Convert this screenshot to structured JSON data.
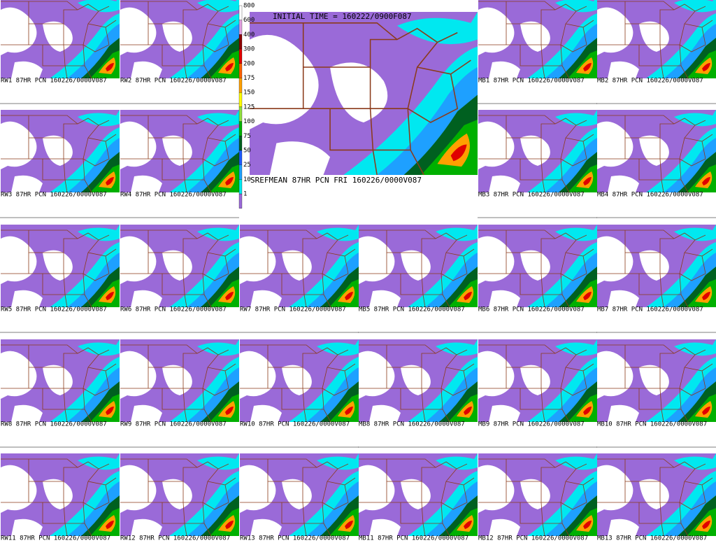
{
  "center": {
    "initial_time": "INITIAL TIME = 160222/0900F087",
    "label": "SREFMEAN 87HR PCN FRI 160226/0000V087"
  },
  "colorbar": {
    "labels": [
      800,
      600,
      400,
      300,
      200,
      175,
      150,
      125,
      100,
      75,
      50,
      25,
      10,
      1
    ],
    "colors": [
      "#ffffff",
      "#e0a0e0",
      "#8b0000",
      "#e00000",
      "#ff6000",
      "#ffa000",
      "#ffff00",
      "#90e040",
      "#00b000",
      "#006020",
      "#1e5aff",
      "#1ea0ff",
      "#00e8f0",
      "#9a6ad8"
    ]
  },
  "panels": [
    {
      "label": "RW1 87HR PCN 160226/0000V087"
    },
    {
      "label": "RW2 87HR PCN 160226/0000V087"
    },
    {
      "label": "MB1 87HR PCN 160226/0000V087"
    },
    {
      "label": "MB2 87HR PCN 160226/0000V087"
    },
    {
      "label": "RW3 87HR PCN 160226/0000V087"
    },
    {
      "label": "RW4 87HR PCN 160226/0000V087"
    },
    {
      "label": "MB3 87HR PCN 160226/0000V087"
    },
    {
      "label": "MB4 87HR PCN 160226/0000V087"
    },
    {
      "label": "RW5 87HR PCN 160226/0000V087"
    },
    {
      "label": "RW6 87HR PCN 160226/0000V087"
    },
    {
      "label": "RW7 87HR PCN 160226/0000V087"
    },
    {
      "label": "MB5 87HR PCN 160226/0000V087"
    },
    {
      "label": "MB6 87HR PCN 160226/0000V087"
    },
    {
      "label": "MB7 87HR PCN 160226/0000V087"
    },
    {
      "label": "RW8 87HR PCN 160226/0000V087"
    },
    {
      "label": "RW9 87HR PCN 160226/0000V087"
    },
    {
      "label": "RW10 87HR PCN 160226/0000V087"
    },
    {
      "label": "MB8 87HR PCN 160226/0000V087"
    },
    {
      "label": "MB9 87HR PCN 160226/0000V087"
    },
    {
      "label": "MB10 87HR PCN 160226/0000V087"
    },
    {
      "label": "RW11 87HR PCN 160226/0000V087"
    },
    {
      "label": "RW12 87HR PCN 160226/0000V087"
    },
    {
      "label": "RW13 87HR PCN 160226/0000V087"
    },
    {
      "label": "MB11 87HR PCN 160226/0000V087"
    },
    {
      "label": "MB12 87HR PCN 160226/0000V087"
    },
    {
      "label": "MB13 87HR PCN 160226/0000V087"
    }
  ]
}
